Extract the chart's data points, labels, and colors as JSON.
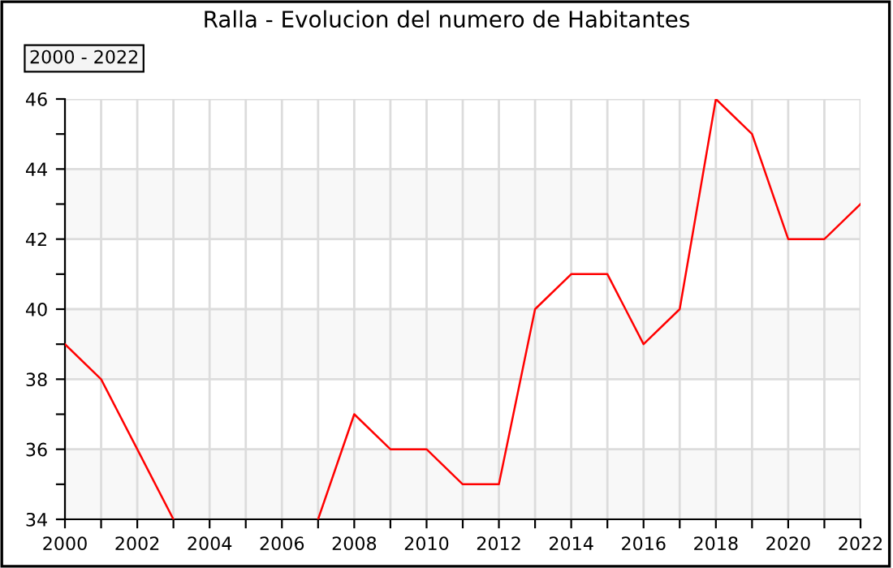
{
  "chart_data": {
    "type": "line",
    "title": "Ralla - Evolucion del numero de Habitantes",
    "annotations": [
      "2000 - 2022"
    ],
    "x": [
      2000,
      2001,
      2002,
      2003,
      2004,
      2005,
      2006,
      2007,
      2008,
      2009,
      2010,
      2011,
      2012,
      2013,
      2014,
      2015,
      2016,
      2017,
      2018,
      2019,
      2020,
      2021,
      2022
    ],
    "series": [
      {
        "color": "#ff0000",
        "values": [
          39,
          38,
          36,
          34,
          null,
          null,
          null,
          34,
          37,
          36,
          36,
          35,
          35,
          40,
          41,
          41,
          39,
          40,
          46,
          45,
          42,
          42,
          43
        ]
      }
    ],
    "xlim": [
      2000,
      2022
    ],
    "xticks": [
      2000,
      {
        "value": 2001,
        "label": null
      },
      2002,
      {
        "value": 2003,
        "label": null
      },
      2004,
      {
        "value": 2005,
        "label": null
      },
      2006,
      {
        "value": 2007,
        "label": null
      },
      2008,
      {
        "value": 2009,
        "label": null
      },
      2010,
      {
        "value": 2011,
        "label": null
      },
      2012,
      {
        "value": 2013,
        "label": null
      },
      2014,
      {
        "value": 2015,
        "label": null
      },
      2016,
      {
        "value": 2017,
        "label": null
      },
      2018,
      {
        "value": 2019,
        "label": null
      },
      2020,
      {
        "value": 2021,
        "label": null
      },
      2022
    ],
    "ylim": [
      34,
      46
    ],
    "yticks": [
      34,
      {
        "value": 35,
        "label": null
      },
      36,
      {
        "value": 37,
        "label": null
      },
      38,
      {
        "value": 39,
        "label": null
      },
      40,
      {
        "value": 41,
        "label": null
      },
      42,
      {
        "value": 43,
        "label": null
      },
      44,
      {
        "value": 45,
        "label": null
      },
      46
    ],
    "bands": [
      {
        "axis": "y",
        "from": 34,
        "to": 36,
        "color": "#f8f8f8"
      },
      {
        "axis": "y",
        "from": 38,
        "to": 40,
        "color": "#f8f8f8"
      },
      {
        "axis": "y",
        "from": 42,
        "to": 44,
        "color": "#f8f8f8"
      }
    ],
    "grid": true,
    "marker": "none",
    "line_style": "solid"
  }
}
